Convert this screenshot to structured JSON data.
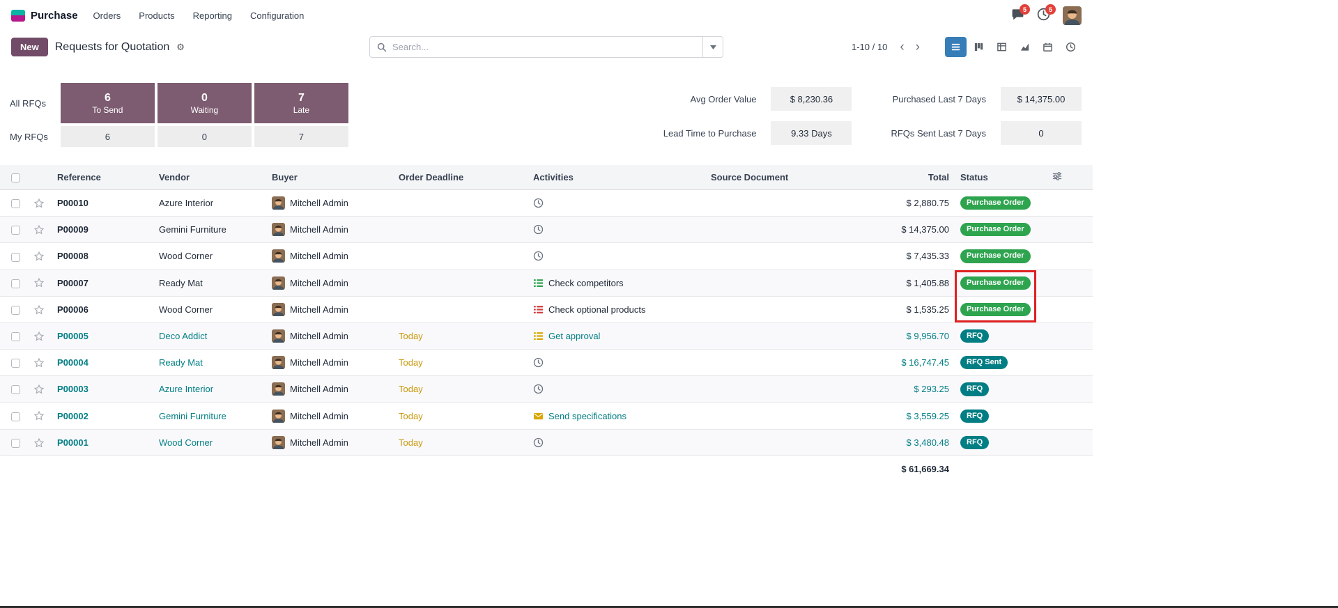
{
  "colors": {
    "brand_purple": "#714B67",
    "dashboard_card_purple": "#7d5c71",
    "teal_accent": "#017e84",
    "purchase_order_green": "#2ea44f",
    "deadline_amber": "#c9980a",
    "nav_badge_red": "#e1413a",
    "annotation_red": "#e02020",
    "active_view_blue": "#377eb8",
    "activity_green": "#2ea44f",
    "activity_red": "#d23f3f",
    "activity_yellow": "#d8a800"
  },
  "navbar": {
    "app_name": "Purchase",
    "menus": [
      {
        "label": "Orders"
      },
      {
        "label": "Products"
      },
      {
        "label": "Reporting"
      },
      {
        "label": "Configuration"
      }
    ],
    "messages_badge": "5",
    "activities_badge": "5"
  },
  "control_panel": {
    "new_button_label": "New",
    "title": "Requests for Quotation",
    "search_placeholder": "Search...",
    "pager": "1-10 / 10"
  },
  "dashboard": {
    "row_labels": {
      "all": "All RFQs",
      "my": "My RFQs"
    },
    "cards": [
      {
        "count": "6",
        "label": "To Send",
        "my_count": "6"
      },
      {
        "count": "0",
        "label": "Waiting",
        "my_count": "0"
      },
      {
        "count": "7",
        "label": "Late",
        "my_count": "7"
      }
    ],
    "stats": [
      {
        "label": "Avg Order Value",
        "value": "$ 8,230.36"
      },
      {
        "label": "Purchased Last 7 Days",
        "value": "$ 14,375.00"
      },
      {
        "label": "Lead Time to Purchase",
        "value": "9.33 Days"
      },
      {
        "label": "RFQs Sent Last 7 Days",
        "value": "0"
      }
    ]
  },
  "table": {
    "columns": [
      "Reference",
      "Vendor",
      "Buyer",
      "Order Deadline",
      "Activities",
      "Source Document",
      "Total",
      "Status"
    ],
    "rows": [
      {
        "reference": "P00010",
        "vendor": "Azure Interior",
        "buyer": "Mitchell Admin",
        "deadline": "",
        "activity_label": "",
        "activity_icon": "clock",
        "source": "",
        "total": "$ 2,880.75",
        "status": "Purchase Order",
        "state": "purchase"
      },
      {
        "reference": "P00009",
        "vendor": "Gemini Furniture",
        "buyer": "Mitchell Admin",
        "deadline": "",
        "activity_label": "",
        "activity_icon": "clock",
        "source": "",
        "total": "$ 14,375.00",
        "status": "Purchase Order",
        "state": "purchase"
      },
      {
        "reference": "P00008",
        "vendor": "Wood Corner",
        "buyer": "Mitchell Admin",
        "deadline": "",
        "activity_label": "",
        "activity_icon": "clock",
        "source": "",
        "total": "$ 7,435.33",
        "status": "Purchase Order",
        "state": "purchase"
      },
      {
        "reference": "P00007",
        "vendor": "Ready Mat",
        "buyer": "Mitchell Admin",
        "deadline": "",
        "activity_label": "Check competitors",
        "activity_icon": "list-green",
        "source": "",
        "total": "$ 1,405.88",
        "status": "Purchase Order",
        "state": "purchase",
        "annotated": true
      },
      {
        "reference": "P00006",
        "vendor": "Wood Corner",
        "buyer": "Mitchell Admin",
        "deadline": "",
        "activity_label": "Check optional products",
        "activity_icon": "list-red",
        "source": "",
        "total": "$ 1,535.25",
        "status": "Purchase Order",
        "state": "purchase",
        "annotated": true
      },
      {
        "reference": "P00005",
        "vendor": "Deco Addict",
        "buyer": "Mitchell Admin",
        "deadline": "Today",
        "activity_label": "Get approval",
        "activity_icon": "list-yellow",
        "source": "",
        "total": "$ 9,956.70",
        "status": "RFQ",
        "state": "rfq"
      },
      {
        "reference": "P00004",
        "vendor": "Ready Mat",
        "buyer": "Mitchell Admin",
        "deadline": "Today",
        "activity_label": "",
        "activity_icon": "clock",
        "source": "",
        "total": "$ 16,747.45",
        "status": "RFQ Sent",
        "state": "rfq"
      },
      {
        "reference": "P00003",
        "vendor": "Azure Interior",
        "buyer": "Mitchell Admin",
        "deadline": "Today",
        "activity_label": "",
        "activity_icon": "clock",
        "source": "",
        "total": "$ 293.25",
        "status": "RFQ",
        "state": "rfq"
      },
      {
        "reference": "P00002",
        "vendor": "Gemini Furniture",
        "buyer": "Mitchell Admin",
        "deadline": "Today",
        "activity_label": "Send specifications",
        "activity_icon": "envelope-yellow",
        "source": "",
        "total": "$ 3,559.25",
        "status": "RFQ",
        "state": "rfq"
      },
      {
        "reference": "P00001",
        "vendor": "Wood Corner",
        "buyer": "Mitchell Admin",
        "deadline": "Today",
        "activity_label": "",
        "activity_icon": "clock",
        "source": "",
        "total": "$ 3,480.48",
        "status": "RFQ",
        "state": "rfq"
      }
    ],
    "footer_total": "$ 61,669.34"
  },
  "annotation": {
    "shape": "red-rectangle",
    "target": "status badges of rows P00007 and P00006"
  }
}
